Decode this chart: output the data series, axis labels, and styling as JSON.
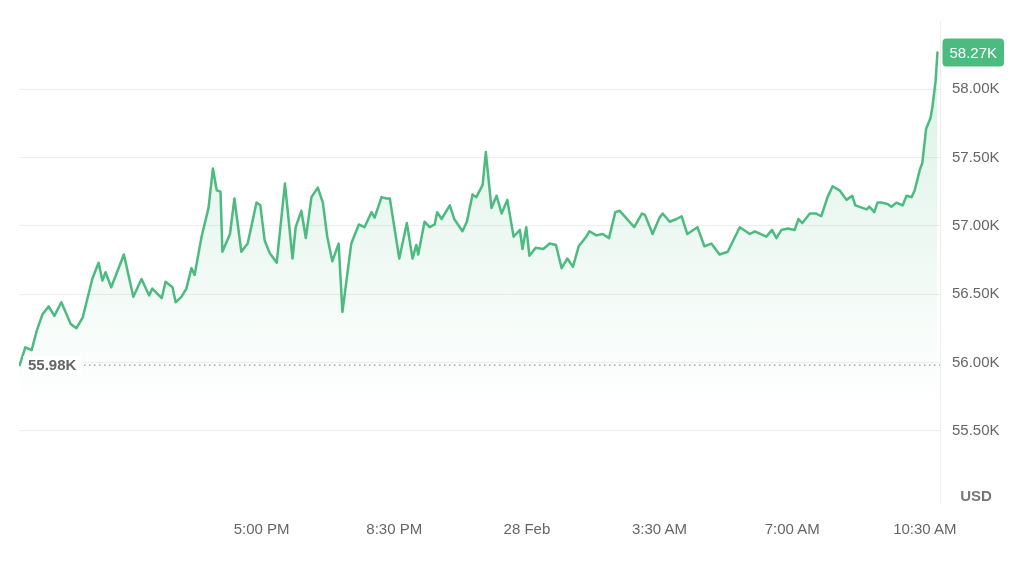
{
  "chart_data": {
    "type": "area",
    "x": [
      "--02-27T10:37",
      "--02-27T10:46",
      "--02-27T10:56",
      "--02-27T11:04",
      "--02-27T11:13",
      "--02-27T11:23",
      "--02-27T11:32",
      "--02-27T11:43",
      "--02-27T11:58",
      "--02-27T12:07",
      "--02-27T12:17",
      "--02-27T12:32",
      "--02-27T12:42",
      "--02-27T12:48",
      "--02-27T12:53",
      "--02-27T13:02",
      "--02-27T13:22",
      "--02-27T13:37",
      "--02-27T13:50",
      "--02-27T14:02",
      "--02-27T14:07",
      "--02-27T14:22",
      "--02-27T14:28",
      "--02-27T14:39",
      "--02-27T14:44",
      "--02-27T14:53",
      "--02-27T15:01",
      "--02-27T15:09",
      "--02-27T15:14",
      "--02-27T15:25",
      "--02-27T15:36",
      "--02-27T15:43",
      "--02-27T15:49",
      "--02-27T15:55",
      "--02-27T15:58",
      "--02-27T16:10",
      "--02-27T16:17",
      "--02-27T16:28",
      "--02-27T16:38",
      "--02-27T16:52",
      "--02-27T16:58",
      "--02-27T17:05",
      "--02-27T17:13",
      "--02-27T17:24",
      "--02-27T17:37",
      "--02-27T17:49",
      "--02-27T17:54",
      "--02-27T18:03",
      "--02-27T18:10",
      "--02-27T18:19",
      "--02-27T18:29",
      "--02-27T18:37",
      "--02-27T18:44",
      "--02-27T18:52",
      "--02-27T19:02",
      "--02-27T19:08",
      "--02-27T19:22",
      "--02-27T19:34",
      "--02-27T19:43",
      "--02-27T19:54",
      "--02-27T19:59",
      "--02-27T20:10",
      "--02-27T20:18",
      "--02-27T20:23",
      "--02-27T20:38",
      "--02-27T20:50",
      "--02-27T20:59",
      "--02-27T21:05",
      "--02-27T21:08",
      "--02-27T21:18",
      "--02-27T21:26",
      "--02-27T21:34",
      "--02-27T21:38",
      "--02-27T21:45",
      "--02-27T21:58",
      "--02-27T22:05",
      "--02-27T22:18",
      "--02-27T22:25",
      "--02-27T22:34",
      "--02-27T22:40",
      "--02-27T22:50",
      "--02-27T22:55",
      "--02-27T23:04",
      "--02-27T23:12",
      "--02-27T23:20",
      "--02-27T23:29",
      "--02-27T23:39",
      "--02-27T23:49",
      "--02-27T23:53",
      "--02-27T23:59",
      "--02-28T00:04",
      "--02-28T00:14",
      "--02-28T00:26",
      "--02-28T00:36",
      "--02-28T00:46",
      "--02-28T00:55",
      "--02-28T01:04",
      "--02-28T01:13",
      "--02-28T01:22",
      "--02-28T01:34",
      "--02-28T01:39",
      "--02-28T01:50",
      "--02-28T02:00",
      "--02-28T02:10",
      "--02-28T02:20",
      "--02-28T02:27",
      "--02-28T02:50",
      "--02-28T03:02",
      "--02-28T03:07",
      "--02-28T03:19",
      "--02-28T03:30",
      "--02-28T03:35",
      "--02-28T03:46",
      "--02-28T03:57",
      "--02-28T04:05",
      "--02-28T04:14",
      "--02-28T04:30",
      "--02-28T04:41",
      "--02-28T04:52",
      "--02-28T05:05",
      "--02-28T05:18",
      "--02-28T05:37",
      "--02-28T05:53",
      "--02-28T06:01",
      "--02-28T06:19",
      "--02-28T06:28",
      "--02-28T06:35",
      "--02-28T06:43",
      "--02-28T06:53",
      "--02-28T07:04",
      "--02-28T07:10",
      "--02-28T07:16",
      "--02-28T07:28",
      "--02-28T07:38",
      "--02-28T07:46",
      "--02-28T07:56",
      "--02-28T08:04",
      "--02-28T08:15",
      "--02-28T08:26",
      "--02-28T08:35",
      "--02-28T08:40",
      "--02-28T08:58",
      "--02-28T09:02",
      "--02-28T09:10",
      "--02-28T09:15",
      "--02-28T09:22",
      "--02-28T09:31",
      "--02-28T09:37",
      "--02-28T09:45",
      "--02-28T09:55",
      "--02-28T10:01",
      "--02-28T10:09",
      "--02-28T10:14",
      "--02-28T10:22",
      "--02-28T10:26",
      "--02-28T10:32",
      "--02-28T10:39",
      "--02-28T10:42",
      "--02-28T10:47",
      "--02-28T10:50"
    ],
    "series": [
      {
        "color": "#4cbb7f",
        "values": [
          55980,
          56110,
          56090,
          56230,
          56350,
          56410,
          56340,
          56440,
          56280,
          56250,
          56330,
          56610,
          56730,
          56600,
          56660,
          56550,
          56790,
          56480,
          56610,
          56490,
          56540,
          56470,
          56590,
          56550,
          56440,
          56480,
          56540,
          56690,
          56640,
          56920,
          57130,
          57420,
          57260,
          57250,
          56810,
          56940,
          57200,
          56810,
          56870,
          57170,
          57150,
          56890,
          56800,
          56730,
          57310,
          56760,
          56990,
          57110,
          56910,
          57210,
          57280,
          57170,
          56920,
          56740,
          56870,
          56370,
          56870,
          57010,
          56990,
          57100,
          57060,
          57210,
          57200,
          57200,
          56760,
          57020,
          56760,
          56860,
          56790,
          57030,
          56990,
          57010,
          57100,
          57050,
          57150,
          57050,
          56960,
          57030,
          57230,
          57210,
          57300,
          57540,
          57130,
          57220,
          57090,
          57190,
          56920,
          56970,
          56830,
          56990,
          56780,
          56840,
          56830,
          56870,
          56860,
          56690,
          56760,
          56700,
          56850,
          56920,
          56960,
          56930,
          56940,
          56910,
          57100,
          57110,
          56990,
          57090,
          57080,
          56940,
          57060,
          57090,
          57030,
          57050,
          57070,
          56940,
          56990,
          56850,
          56870,
          56790,
          56810,
          56990,
          56940,
          56960,
          56920,
          56970,
          56910,
          56970,
          56980,
          56970,
          57050,
          57020,
          57090,
          57090,
          57070,
          57210,
          57290,
          57260,
          57190,
          57220,
          57150,
          57120,
          57140,
          57100,
          57170,
          57170,
          57160,
          57140,
          57170,
          57150,
          57220,
          57210,
          57260,
          57410,
          57460,
          57710,
          57790,
          57870,
          58060,
          58270
        ]
      }
    ],
    "xlim": [
      "--02-27T10:36",
      "--02-28T10:54"
    ],
    "xticks": [
      {
        "value": "--02-27T17:00",
        "label": "5:00 PM"
      },
      {
        "value": "--02-27T20:30",
        "label": "8:30 PM"
      },
      {
        "value": "--02-28T00:00",
        "label": "28 Feb"
      },
      {
        "value": "--02-28T03:30",
        "label": "3:30 AM"
      },
      {
        "value": "--02-28T07:00",
        "label": "7:00 AM"
      },
      {
        "value": "--02-28T10:30",
        "label": "10:30 AM"
      }
    ],
    "ylim": [
      54970,
      58500
    ],
    "yticks": [
      {
        "value": 55500,
        "label": "55.50K"
      },
      {
        "value": 56000,
        "label": "56.00K"
      },
      {
        "value": 56500,
        "label": "56.50K"
      },
      {
        "value": 57000,
        "label": "57.00K"
      },
      {
        "value": 57500,
        "label": "57.50K"
      },
      {
        "value": 58000,
        "label": "58.00K"
      }
    ],
    "ylabel": "USD",
    "grid": "y",
    "marker": "none",
    "line_style": "solid",
    "ref_lines": [
      {
        "axis": "y",
        "value": 55980,
        "label": "55.98K",
        "color": "#999999",
        "line_style": "dotted"
      }
    ],
    "annotations": [
      {
        "text": "58.27K",
        "x": "--02-28T10:50",
        "y": 58270
      }
    ]
  }
}
